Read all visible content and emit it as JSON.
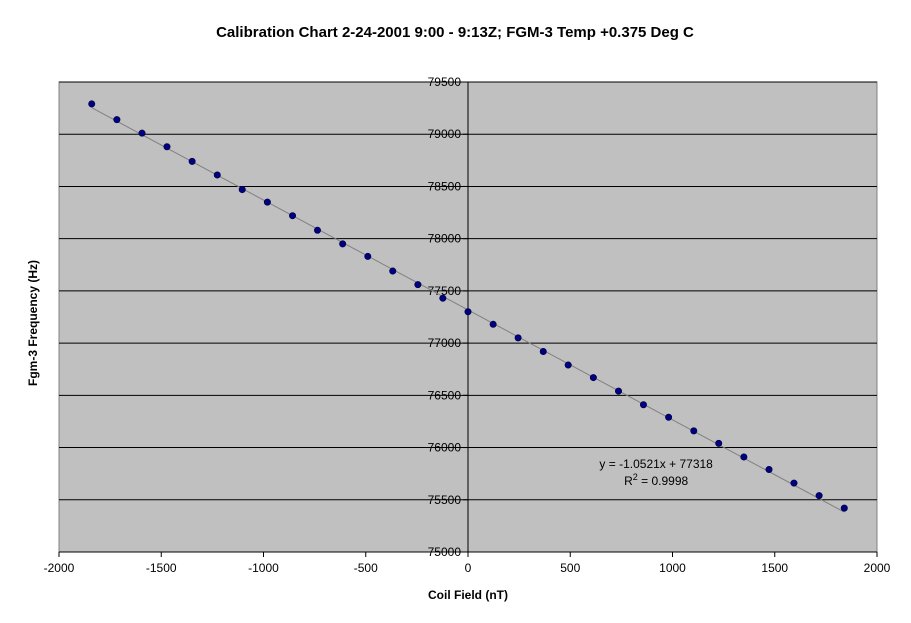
{
  "chart_data": {
    "type": "scatter",
    "title": "Calibration Chart 2-24-2001 9:00 - 9:13Z;  FGM-3 Temp +0.375 Deg C",
    "xlabel": "Coil Field (nT)",
    "ylabel": "Fgm-3 Frequency (Hz)",
    "xlim": [
      -2000,
      2000
    ],
    "ylim": [
      75000,
      79500
    ],
    "xticks": [
      -2000,
      -1500,
      -1000,
      -500,
      0,
      500,
      1000,
      1500,
      2000
    ],
    "yticks": [
      75000,
      75500,
      76000,
      76500,
      77000,
      77500,
      78000,
      78500,
      79000,
      79500
    ],
    "x_tick_labels": [
      "-2000",
      "-1500",
      "-1000",
      "-500",
      "0",
      "500",
      "1000",
      "1500",
      "2000"
    ],
    "y_tick_labels": [
      "75000",
      "75500",
      "76000",
      "76500",
      "77000",
      "77500",
      "78000",
      "78500",
      "79000",
      "79500"
    ],
    "grid": {
      "horizontal": true,
      "vertical": false
    },
    "plot_background": "#c0c0c0",
    "series": [
      {
        "color": "#000080",
        "marker": "circle",
        "x": [
          -1840,
          -1717,
          -1594,
          -1472,
          -1349,
          -1226,
          -1104,
          -981,
          -858,
          -736,
          -613,
          -490,
          -368,
          -245,
          -123,
          0,
          123,
          245,
          368,
          490,
          613,
          736,
          858,
          981,
          1104,
          1226,
          1349,
          1472,
          1594,
          1717,
          1840
        ],
        "y": [
          79290,
          79140,
          79010,
          78880,
          78740,
          78610,
          78470,
          78350,
          78220,
          78080,
          77950,
          77830,
          77690,
          77560,
          77430,
          77300,
          77180,
          77050,
          76920,
          76790,
          76670,
          76540,
          76410,
          76290,
          76160,
          76040,
          75910,
          75790,
          75660,
          75540,
          75420
        ]
      }
    ],
    "trendline": {
      "color": "#808080",
      "x_range": [
        -1840,
        1840
      ],
      "slope": -1.0521,
      "intercept": 77318
    },
    "annotation": {
      "equation": "y = -1.0521x + 77318",
      "r2_prefix": "R",
      "r2_sup": "2",
      "r2_value": " = 0.9998",
      "anchor": {
        "x": 920,
        "y": 75900
      }
    }
  }
}
